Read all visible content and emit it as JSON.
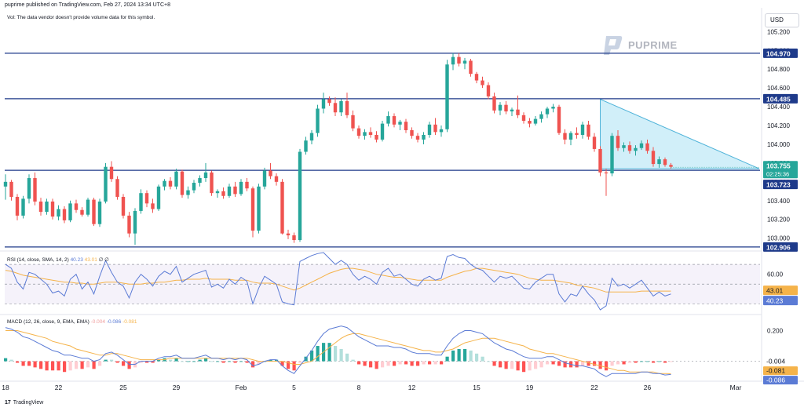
{
  "header": {
    "published": "puprime published on TradingView.com, Feb 27, 2024 13:34 UTC+8",
    "vol_note": "Vol: The data vendor doesn't provide volume data for this symbol.",
    "currency": "USD"
  },
  "brand": {
    "logo_text": "PUPRIME",
    "footer_text": "TradingView",
    "footer_mark": "17"
  },
  "colors": {
    "up": "#26a69a",
    "down": "#ef5350",
    "line": "#1e3a8a",
    "triangle_fill": "#b3e5f5",
    "triangle_stroke": "#4fb3d9",
    "rsi_line": "#5b7bd5",
    "rsi_sma": "#f5b34a",
    "macd_line": "#5b7bd5",
    "signal_line": "#f5b34a"
  },
  "chart_data": [
    {
      "type": "candlestick",
      "name": "price",
      "ylim": [
        102.88,
        105.42
      ],
      "y_ticks": [
        "105.200",
        "105.000",
        "104.800",
        "104.600",
        "104.400",
        "104.200",
        "104.000",
        "103.800",
        "103.600",
        "103.400",
        "103.200",
        "103.000"
      ],
      "x_ticks": [
        "18",
        "22",
        "25",
        "29",
        "Feb",
        "5",
        "8",
        "12",
        "15",
        "19",
        "22",
        "26",
        "Mar"
      ],
      "hlines": [
        {
          "value": 104.97,
          "label": "104.970"
        },
        {
          "value": 104.485,
          "label": "104.485"
        },
        {
          "value": 103.723,
          "label": "103.723"
        },
        {
          "value": 102.906,
          "label": "102.906"
        }
      ],
      "last_price": {
        "value": 103.755,
        "label": "103.755",
        "countdown": "02:25:36"
      },
      "triangle": [
        [
          {
            "i": 101,
            "v": 104.48
          },
          {
            "i": 128,
            "v": 103.74
          }
        ],
        [
          {
            "i": 101,
            "v": 103.74
          }
        ]
      ],
      "ohlc": [
        [
          103.55,
          103.68,
          103.41,
          103.6
        ],
        [
          103.6,
          103.62,
          103.4,
          103.44
        ],
        [
          103.44,
          103.47,
          103.19,
          103.24
        ],
        [
          103.24,
          103.45,
          103.21,
          103.42
        ],
        [
          103.42,
          103.68,
          103.37,
          103.64
        ],
        [
          103.64,
          103.7,
          103.35,
          103.39
        ],
        [
          103.39,
          103.43,
          103.24,
          103.28
        ],
        [
          103.28,
          103.42,
          103.25,
          103.39
        ],
        [
          103.39,
          103.42,
          103.2,
          103.23
        ],
        [
          103.23,
          103.35,
          103.19,
          103.31
        ],
        [
          103.31,
          103.34,
          103.16,
          103.19
        ],
        [
          103.19,
          103.4,
          103.17,
          103.37
        ],
        [
          103.37,
          103.41,
          103.27,
          103.3
        ],
        [
          103.3,
          103.33,
          103.23,
          103.25
        ],
        [
          103.25,
          103.43,
          103.23,
          103.41
        ],
        [
          103.41,
          103.43,
          103.13,
          103.15
        ],
        [
          103.15,
          103.42,
          103.12,
          103.39
        ],
        [
          103.39,
          103.8,
          103.37,
          103.76
        ],
        [
          103.76,
          103.82,
          103.6,
          103.63
        ],
        [
          103.63,
          103.66,
          103.41,
          103.44
        ],
        [
          103.44,
          103.47,
          103.21,
          103.24
        ],
        [
          103.24,
          103.28,
          103.01,
          103.05
        ],
        [
          103.05,
          103.32,
          102.93,
          103.29
        ],
        [
          103.29,
          103.52,
          103.26,
          103.48
        ],
        [
          103.48,
          103.51,
          103.33,
          103.37
        ],
        [
          103.37,
          103.42,
          103.27,
          103.31
        ],
        [
          103.31,
          103.57,
          103.29,
          103.55
        ],
        [
          103.55,
          103.63,
          103.51,
          103.61
        ],
        [
          103.61,
          103.65,
          103.52,
          103.55
        ],
        [
          103.55,
          103.74,
          103.52,
          103.71
        ],
        [
          103.71,
          103.73,
          103.43,
          103.46
        ],
        [
          103.46,
          103.55,
          103.42,
          103.51
        ],
        [
          103.51,
          103.62,
          103.48,
          103.59
        ],
        [
          103.59,
          103.67,
          103.55,
          103.64
        ],
        [
          103.64,
          103.8,
          103.6,
          103.7
        ],
        [
          103.7,
          103.72,
          103.45,
          103.48
        ],
        [
          103.48,
          103.52,
          103.43,
          103.5
        ],
        [
          103.5,
          103.54,
          103.42,
          103.45
        ],
        [
          103.45,
          103.58,
          103.43,
          103.55
        ],
        [
          103.55,
          103.6,
          103.44,
          103.47
        ],
        [
          103.47,
          103.63,
          103.45,
          103.6
        ],
        [
          103.6,
          103.64,
          103.5,
          103.53
        ],
        [
          103.53,
          103.55,
          103.01,
          103.08
        ],
        [
          103.08,
          103.58,
          103.05,
          103.55
        ],
        [
          103.55,
          103.75,
          103.52,
          103.72
        ],
        [
          103.72,
          103.8,
          103.63,
          103.66
        ],
        [
          103.66,
          103.69,
          103.56,
          103.6
        ],
        [
          103.6,
          103.63,
          103.04,
          103.05
        ],
        [
          103.05,
          103.09,
          102.99,
          103.03
        ],
        [
          103.03,
          103.06,
          102.95,
          102.98
        ],
        [
          102.98,
          103.95,
          102.96,
          103.92
        ],
        [
          103.92,
          104.08,
          103.89,
          104.04
        ],
        [
          104.04,
          104.15,
          104.0,
          104.12
        ],
        [
          104.12,
          104.42,
          104.08,
          104.38
        ],
        [
          104.38,
          104.55,
          104.33,
          104.48
        ],
        [
          104.48,
          104.51,
          104.41,
          104.44
        ],
        [
          104.44,
          104.5,
          104.3,
          104.34
        ],
        [
          104.34,
          104.48,
          104.3,
          104.46
        ],
        [
          104.46,
          104.55,
          104.28,
          104.31
        ],
        [
          104.31,
          104.36,
          104.14,
          104.17
        ],
        [
          104.17,
          104.2,
          104.06,
          104.09
        ],
        [
          104.09,
          104.16,
          104.05,
          104.13
        ],
        [
          104.13,
          104.18,
          104.07,
          104.1
        ],
        [
          104.1,
          104.14,
          104.02,
          104.05
        ],
        [
          104.05,
          104.25,
          104.03,
          104.22
        ],
        [
          104.22,
          104.35,
          104.19,
          104.3
        ],
        [
          104.3,
          104.33,
          104.18,
          104.21
        ],
        [
          104.21,
          104.26,
          104.15,
          104.24
        ],
        [
          104.24,
          104.27,
          104.12,
          104.15
        ],
        [
          104.15,
          104.18,
          104.06,
          104.09
        ],
        [
          104.09,
          104.12,
          104.02,
          104.05
        ],
        [
          104.05,
          104.13,
          104.0,
          104.1
        ],
        [
          104.1,
          104.24,
          104.07,
          104.21
        ],
        [
          104.21,
          104.28,
          104.1,
          104.13
        ],
        [
          104.13,
          104.2,
          104.08,
          104.16
        ],
        [
          104.16,
          104.9,
          104.13,
          104.85
        ],
        [
          104.85,
          104.97,
          104.79,
          104.93
        ],
        [
          104.93,
          104.97,
          104.83,
          104.86
        ],
        [
          104.86,
          104.92,
          104.8,
          104.89
        ],
        [
          104.89,
          104.91,
          104.72,
          104.75
        ],
        [
          104.75,
          104.77,
          104.65,
          104.68
        ],
        [
          104.68,
          104.72,
          104.6,
          104.63
        ],
        [
          104.63,
          104.66,
          104.48,
          104.51
        ],
        [
          104.51,
          104.55,
          104.33,
          104.36
        ],
        [
          104.36,
          104.45,
          104.31,
          104.42
        ],
        [
          104.42,
          104.46,
          104.32,
          104.35
        ],
        [
          104.35,
          104.39,
          104.3,
          104.37
        ],
        [
          104.37,
          104.52,
          104.28,
          104.31
        ],
        [
          104.31,
          104.34,
          104.22,
          104.25
        ],
        [
          104.25,
          104.28,
          104.18,
          104.22
        ],
        [
          104.22,
          104.3,
          104.2,
          104.27
        ],
        [
          104.27,
          104.35,
          104.23,
          104.32
        ],
        [
          104.32,
          104.4,
          104.28,
          104.38
        ],
        [
          104.38,
          104.43,
          104.34,
          104.4
        ],
        [
          104.4,
          104.42,
          104.1,
          104.12
        ],
        [
          104.12,
          104.16,
          104.0,
          104.05
        ],
        [
          104.05,
          104.14,
          103.99,
          104.12
        ],
        [
          104.12,
          104.18,
          104.06,
          104.1
        ],
        [
          104.1,
          104.24,
          104.06,
          104.21
        ],
        [
          104.21,
          104.25,
          104.05,
          104.08
        ],
        [
          104.08,
          104.12,
          103.92,
          103.95
        ],
        [
          103.95,
          103.98,
          103.66,
          103.7
        ],
        [
          103.7,
          103.74,
          103.45,
          103.69
        ],
        [
          103.69,
          104.12,
          103.66,
          104.09
        ],
        [
          104.09,
          104.15,
          103.93,
          103.96
        ],
        [
          103.96,
          104.02,
          103.92,
          103.99
        ],
        [
          103.99,
          104.03,
          103.9,
          103.93
        ],
        [
          103.93,
          103.99,
          103.88,
          103.96
        ],
        [
          103.96,
          104.04,
          103.94,
          104.01
        ],
        [
          104.01,
          104.05,
          103.9,
          103.93
        ],
        [
          103.93,
          103.97,
          103.76,
          103.79
        ],
        [
          103.79,
          103.87,
          103.75,
          103.84
        ],
        [
          103.84,
          103.86,
          103.76,
          103.78
        ],
        [
          103.78,
          103.8,
          103.74,
          103.76
        ]
      ]
    },
    {
      "type": "line",
      "name": "rsi",
      "label": "RSI (14, close, SMA, 14, 2)",
      "rsi_value_label": "40.23",
      "sma_value_label": "43.01",
      "extra_label": "∅ ∅",
      "ylim": [
        20,
        82
      ],
      "bands": [
        30,
        70
      ],
      "tick": "60.00",
      "last_labels": [
        "43.01",
        "40.23"
      ],
      "rsi": [
        70,
        66,
        52,
        45,
        62,
        60,
        55,
        50,
        41,
        43,
        38,
        55,
        60,
        45,
        52,
        40,
        58,
        74,
        62,
        52,
        48,
        36,
        52,
        60,
        55,
        48,
        58,
        63,
        60,
        68,
        52,
        56,
        60,
        62,
        64,
        47,
        50,
        46,
        55,
        50,
        57,
        53,
        30,
        46,
        58,
        54,
        50,
        32,
        30,
        29,
        73,
        76,
        79,
        81,
        82,
        76,
        70,
        74,
        70,
        60,
        54,
        58,
        55,
        50,
        62,
        66,
        58,
        60,
        55,
        50,
        48,
        55,
        58,
        54,
        56,
        78,
        80,
        77,
        76,
        70,
        66,
        64,
        58,
        52,
        58,
        56,
        58,
        52,
        46,
        45,
        52,
        56,
        60,
        60,
        40,
        32,
        40,
        38,
        48,
        40,
        34,
        24,
        28,
        56,
        48,
        50,
        46,
        50,
        54,
        46,
        38,
        42,
        38,
        40
      ],
      "sma": [
        64,
        63,
        61,
        59,
        58,
        57,
        56,
        55,
        54,
        53,
        52,
        52,
        51,
        51,
        50,
        50,
        51,
        52,
        52,
        52,
        51,
        50,
        50,
        50,
        51,
        51,
        52,
        52,
        53,
        54,
        54,
        55,
        55,
        55,
        56,
        55,
        55,
        55,
        55,
        54,
        54,
        54,
        52,
        51,
        51,
        51,
        50,
        48,
        46,
        44,
        46,
        49,
        52,
        55,
        58,
        61,
        63,
        65,
        66,
        66,
        65,
        64,
        62,
        60,
        59,
        58,
        57,
        57,
        56,
        55,
        54,
        54,
        54,
        54,
        54,
        57,
        59,
        61,
        63,
        64,
        66,
        66,
        65,
        64,
        63,
        62,
        61,
        60,
        58,
        56,
        55,
        54,
        54,
        54,
        53,
        52,
        51,
        49,
        48,
        47,
        46,
        44,
        42,
        42,
        42,
        42,
        42,
        42,
        43,
        43,
        43,
        43,
        43,
        43
      ]
    },
    {
      "type": "bar",
      "name": "macd",
      "label": "MACD (12, 26, close, 9, EMA, EMA)",
      "hist_label": "-0.004",
      "macd_label": "-0.086",
      "signal_label": "-0.081",
      "ylim": [
        -0.12,
        0.3
      ],
      "tick": "0.200",
      "last_labels": [
        "-0.004",
        "-0.081",
        "-0.086"
      ],
      "macd": [
        0.22,
        0.21,
        0.19,
        0.16,
        0.15,
        0.13,
        0.11,
        0.09,
        0.07,
        0.06,
        0.04,
        0.04,
        0.03,
        0.02,
        0.02,
        0.0,
        0.01,
        0.05,
        0.06,
        0.04,
        0.01,
        -0.02,
        -0.02,
        0.0,
        0.0,
        0.0,
        0.02,
        0.03,
        0.03,
        0.04,
        0.02,
        0.02,
        0.02,
        0.03,
        0.04,
        0.02,
        0.02,
        0.01,
        0.02,
        0.01,
        0.02,
        0.01,
        -0.03,
        -0.02,
        0.0,
        0.01,
        0.01,
        -0.03,
        -0.06,
        -0.08,
        -0.03,
        0.02,
        0.07,
        0.13,
        0.18,
        0.21,
        0.22,
        0.23,
        0.22,
        0.19,
        0.16,
        0.14,
        0.12,
        0.1,
        0.1,
        0.1,
        0.09,
        0.09,
        0.08,
        0.06,
        0.05,
        0.05,
        0.05,
        0.04,
        0.04,
        0.1,
        0.15,
        0.18,
        0.2,
        0.2,
        0.19,
        0.18,
        0.15,
        0.12,
        0.1,
        0.08,
        0.07,
        0.05,
        0.03,
        0.02,
        0.02,
        0.02,
        0.03,
        0.03,
        0.01,
        -0.01,
        -0.02,
        -0.03,
        -0.03,
        -0.04,
        -0.05,
        -0.08,
        -0.1,
        -0.08,
        -0.08,
        -0.08,
        -0.08,
        -0.08,
        -0.07,
        -0.07,
        -0.08,
        -0.08,
        -0.09,
        -0.086
      ],
      "signal": [
        0.2,
        0.2,
        0.2,
        0.19,
        0.18,
        0.17,
        0.16,
        0.15,
        0.13,
        0.12,
        0.11,
        0.1,
        0.08,
        0.07,
        0.06,
        0.05,
        0.04,
        0.04,
        0.05,
        0.05,
        0.04,
        0.03,
        0.02,
        0.01,
        0.01,
        0.01,
        0.01,
        0.01,
        0.02,
        0.02,
        0.02,
        0.02,
        0.02,
        0.02,
        0.02,
        0.02,
        0.02,
        0.02,
        0.02,
        0.02,
        0.02,
        0.02,
        0.01,
        0.0,
        0.0,
        0.0,
        0.0,
        0.0,
        -0.01,
        -0.02,
        -0.02,
        -0.01,
        0.0,
        0.03,
        0.06,
        0.09,
        0.12,
        0.15,
        0.17,
        0.18,
        0.18,
        0.17,
        0.16,
        0.15,
        0.14,
        0.13,
        0.12,
        0.11,
        0.1,
        0.09,
        0.08,
        0.07,
        0.07,
        0.06,
        0.06,
        0.07,
        0.08,
        0.1,
        0.12,
        0.13,
        0.14,
        0.15,
        0.15,
        0.15,
        0.14,
        0.13,
        0.12,
        0.11,
        0.1,
        0.08,
        0.07,
        0.06,
        0.05,
        0.05,
        0.04,
        0.03,
        0.02,
        0.01,
        0.0,
        -0.01,
        -0.02,
        -0.03,
        -0.04,
        -0.05,
        -0.06,
        -0.06,
        -0.07,
        -0.07,
        -0.07,
        -0.07,
        -0.07,
        -0.08,
        -0.08,
        -0.081
      ]
    }
  ]
}
